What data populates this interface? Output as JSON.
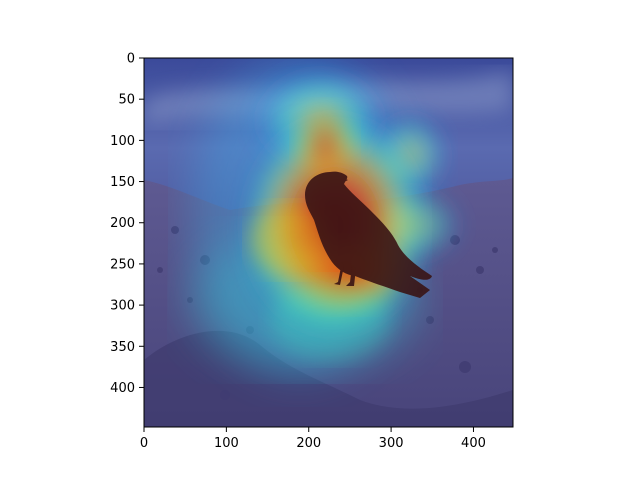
{
  "chart_data": {
    "type": "heatmap",
    "title": "",
    "xlabel": "",
    "ylabel": "",
    "xlim": [
      0,
      448
    ],
    "ylim": [
      448,
      0
    ],
    "x_ticks": [
      0,
      100,
      200,
      300,
      400
    ],
    "y_ticks": [
      0,
      50,
      100,
      150,
      200,
      250,
      300,
      350,
      400
    ],
    "x_tick_labels": [
      "0",
      "100",
      "200",
      "300",
      "400"
    ],
    "y_tick_labels": [
      "0",
      "50",
      "100",
      "150",
      "200",
      "250",
      "300",
      "350",
      "400"
    ],
    "colormap": "jet",
    "grid": false,
    "base_image": "photo of a black crow standing on a rocky hillside, sea and sky behind",
    "heatmap_peaks": [
      {
        "x": 245,
        "y": 225,
        "intensity": 1.0
      },
      {
        "x": 220,
        "y": 140,
        "intensity": 0.85
      },
      {
        "x": 250,
        "y": 270,
        "intensity": 0.9
      },
      {
        "x": 190,
        "y": 230,
        "intensity": 0.7
      },
      {
        "x": 330,
        "y": 140,
        "intensity": 0.45
      },
      {
        "x": 280,
        "y": 330,
        "intensity": 0.35
      }
    ],
    "colors": {
      "sky_dark": "#2a3a8a",
      "sky_light": "#8fa0c8",
      "ground": "#5c5890",
      "ground_dark": "#3e3a70",
      "crow": "#3a1a1a"
    }
  }
}
